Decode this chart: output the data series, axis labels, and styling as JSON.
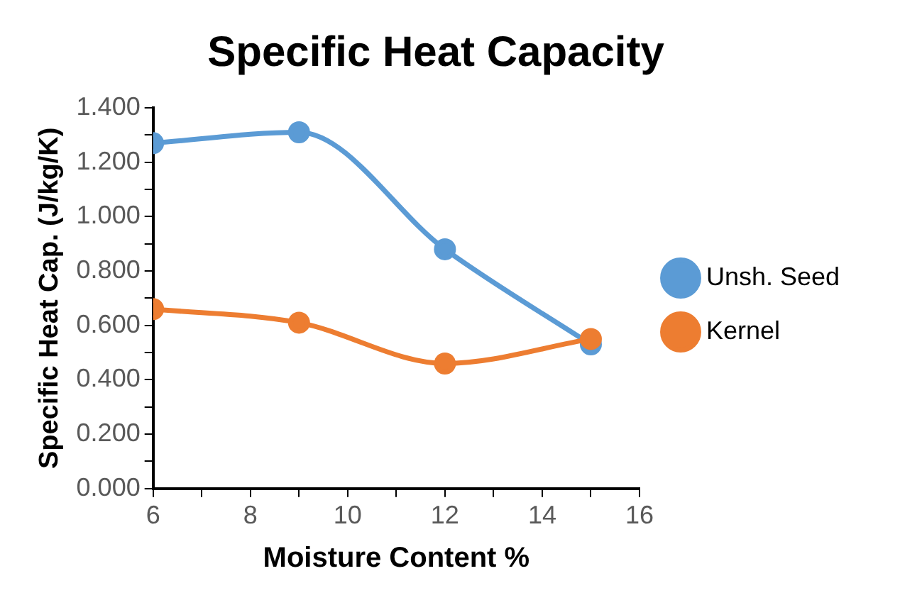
{
  "chart_data": {
    "type": "line",
    "title": "Specific Heat Capacity",
    "xlabel": "Moisture Content %",
    "ylabel": "Specific Heat Cap. (J/kg/K)",
    "x": [
      6,
      9,
      12,
      15
    ],
    "series": [
      {
        "name": "Unsh. Seed",
        "color": "#5b9bd5",
        "values": [
          1.27,
          1.31,
          0.88,
          0.53
        ]
      },
      {
        "name": "Kernel",
        "color": "#ed7d31",
        "values": [
          0.66,
          0.61,
          0.46,
          0.55
        ]
      }
    ],
    "xlim": [
      6,
      16
    ],
    "xticks": [
      6,
      {
        "value": 7,
        "label": null
      },
      8,
      {
        "value": 9,
        "label": null
      },
      10,
      {
        "value": 11,
        "label": null
      },
      12,
      {
        "value": 13,
        "label": null
      },
      14,
      {
        "value": 15,
        "label": null
      },
      16
    ],
    "ylim": [
      0,
      1.4
    ],
    "yticks": [
      {
        "value": 0,
        "label": "0.000"
      },
      {
        "value": 0.1,
        "label": null
      },
      {
        "value": 0.2,
        "label": "0.200"
      },
      {
        "value": 0.3,
        "label": null
      },
      {
        "value": 0.4,
        "label": "0.400"
      },
      {
        "value": 0.5,
        "label": null
      },
      {
        "value": 0.6,
        "label": "0.600"
      },
      {
        "value": 0.7,
        "label": null
      },
      {
        "value": 0.8,
        "label": "0.800"
      },
      {
        "value": 0.9,
        "label": null
      },
      {
        "value": 1.0,
        "label": "1.000"
      },
      {
        "value": 1.1,
        "label": null
      },
      {
        "value": 1.2,
        "label": "1.200"
      },
      {
        "value": 1.3,
        "label": null
      },
      {
        "value": 1.4,
        "label": "1.400"
      }
    ],
    "grid": false,
    "legend": "right",
    "marker": "circle",
    "line_style": "solid"
  }
}
